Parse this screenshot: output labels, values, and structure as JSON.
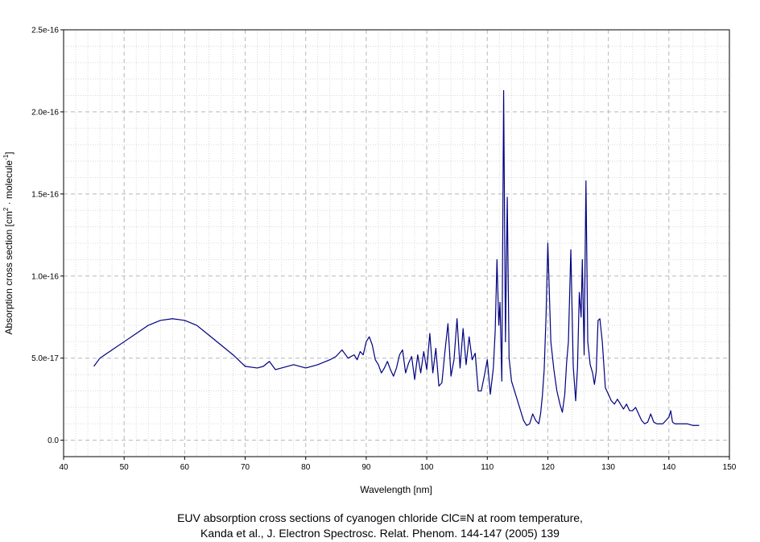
{
  "caption": {
    "line1": "EUV absorption cross sections of cyanogen chloride ClC≡N at room temperature,",
    "line2": "Kanda et al., J. Electron Spectrosc. Relat. Phenom. 144-147 (2005) 139"
  },
  "chart_data": {
    "type": "line",
    "title": "",
    "xlabel": "Wavelength [nm]",
    "ylabel_parts": [
      "Absorption cross section [cm",
      "2",
      " · molecule",
      "-1",
      "]"
    ],
    "xlim": [
      40,
      150
    ],
    "ylim": [
      -1e-17,
      2.5e-16
    ],
    "x_ticks": [
      40,
      50,
      60,
      70,
      80,
      90,
      100,
      110,
      120,
      130,
      140,
      150
    ],
    "x_tick_labels": [
      "40",
      "50",
      "60",
      "70",
      "80",
      "90",
      "100",
      "110",
      "120",
      "130",
      "140",
      "150"
    ],
    "y_ticks": [
      0,
      5e-17,
      1e-16,
      1.5e-16,
      2e-16,
      2.5e-16
    ],
    "y_tick_labels": [
      "0.0",
      "5.0e-17",
      "1.0e-16",
      "1.5e-16",
      "2.0e-16",
      "2.5e-16"
    ],
    "grid": true,
    "line_color": "#000080",
    "series": [
      {
        "x": [
          45,
          46,
          48,
          50,
          52,
          54,
          56,
          58,
          60,
          62,
          64,
          66,
          68,
          70,
          72,
          73,
          74,
          75,
          76,
          78,
          80,
          82,
          84,
          85,
          86,
          87,
          88,
          88.5,
          89,
          89.5,
          90,
          90.5,
          91,
          91.5,
          92,
          92.5,
          93,
          93.5,
          94,
          94.5,
          95,
          95.5,
          96,
          96.5,
          97,
          97.5,
          98,
          98.5,
          99,
          99.5,
          100,
          100.5,
          101,
          101.5,
          102,
          102.5,
          103,
          103.5,
          104,
          104.5,
          105,
          105.5,
          106,
          106.5,
          107,
          107.5,
          108,
          108.5,
          109,
          109.5,
          110,
          110.5,
          111,
          111.3,
          111.6,
          111.9,
          112.1,
          112.4,
          112.7,
          113,
          113.3,
          113.6,
          114,
          114.5,
          115,
          115.5,
          116,
          116.5,
          117,
          117.5,
          118,
          118.5,
          118.8,
          119.1,
          119.4,
          119.7,
          120,
          120.5,
          121,
          121.5,
          122,
          122.4,
          122.8,
          123.1,
          123.4,
          123.8,
          124.2,
          124.6,
          124.9,
          125.2,
          125.5,
          125.7,
          126,
          126.3,
          126.6,
          127,
          127.4,
          127.7,
          128,
          128.3,
          128.6,
          129,
          129.5,
          130,
          130.5,
          131,
          131.5,
          132,
          132.5,
          133,
          133.5,
          134,
          134.5,
          135,
          135.5,
          136,
          136.5,
          137,
          137.5,
          138,
          138.5,
          139,
          139.5,
          140,
          140.3,
          140.6,
          141,
          142,
          143,
          144,
          145
        ],
        "y": [
          4.5e-17,
          5e-17,
          5.5e-17,
          6e-17,
          6.5e-17,
          7e-17,
          7.3e-17,
          7.4e-17,
          7.3e-17,
          7e-17,
          6.4e-17,
          5.8e-17,
          5.2e-17,
          4.5e-17,
          4.4e-17,
          4.5e-17,
          4.8e-17,
          4.3e-17,
          4.4e-17,
          4.6e-17,
          4.4e-17,
          4.6e-17,
          4.9e-17,
          5.1e-17,
          5.5e-17,
          5e-17,
          5.2e-17,
          4.9e-17,
          5.4e-17,
          5.2e-17,
          6e-17,
          6.3e-17,
          5.8e-17,
          4.9e-17,
          4.6e-17,
          4.1e-17,
          4.4e-17,
          4.8e-17,
          4.3e-17,
          3.9e-17,
          4.4e-17,
          5.2e-17,
          5.5e-17,
          4.1e-17,
          4.7e-17,
          5.1e-17,
          3.7e-17,
          5.2e-17,
          4.1e-17,
          5.4e-17,
          4.3e-17,
          6.5e-17,
          4.1e-17,
          5.6e-17,
          3.3e-17,
          3.5e-17,
          5.4e-17,
          7.1e-17,
          3.9e-17,
          4.9e-17,
          7.4e-17,
          4.4e-17,
          6.8e-17,
          4.6e-17,
          6.3e-17,
          4.9e-17,
          5.3e-17,
          3e-17,
          3e-17,
          3.9e-17,
          4.9e-17,
          2.8e-17,
          4.4e-17,
          6.6e-17,
          1.1e-16,
          7e-17,
          8.4e-17,
          3.6e-17,
          2.13e-16,
          6e-17,
          1.48e-16,
          5e-17,
          3.6e-17,
          3e-17,
          2.4e-17,
          1.8e-17,
          1.2e-17,
          9e-18,
          1e-17,
          1.6e-17,
          1.2e-17,
          1e-17,
          1.6e-17,
          2.7e-17,
          4.3e-17,
          7.5e-17,
          1.2e-16,
          6e-17,
          4.3e-17,
          3e-17,
          2.2e-17,
          1.7e-17,
          2.8e-17,
          4.7e-17,
          6e-17,
          1.16e-16,
          4.5e-17,
          2.4e-17,
          4.4e-17,
          9e-17,
          7.5e-17,
          1.1e-16,
          5.2e-17,
          1.58e-16,
          6e-17,
          4.6e-17,
          4.1e-17,
          3.4e-17,
          4.2e-17,
          7.3e-17,
          7.4e-17,
          6e-17,
          3.2e-17,
          2.8e-17,
          2.4e-17,
          2.2e-17,
          2.5e-17,
          2.2e-17,
          1.9e-17,
          2.2e-17,
          1.8e-17,
          1.8e-17,
          2e-17,
          1.6e-17,
          1.2e-17,
          1e-17,
          1.1e-17,
          1.6e-17,
          1.1e-17,
          1e-17,
          1e-17,
          1e-17,
          1.2e-17,
          1.4e-17,
          1.8e-17,
          1.1e-17,
          1e-17,
          1e-17,
          1e-17,
          9e-18,
          9e-18
        ]
      }
    ]
  }
}
